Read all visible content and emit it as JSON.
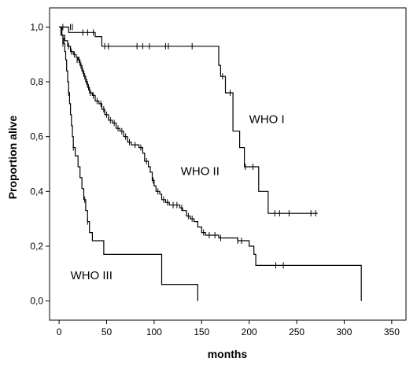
{
  "chart_data": {
    "type": "line",
    "subtype": "kaplan-meier-survival",
    "xlabel": "months",
    "ylabel": "Proportion alive",
    "xlim": [
      -10,
      365
    ],
    "ylim": [
      -0.07,
      1.07
    ],
    "x_ticks": [
      0,
      50,
      100,
      150,
      200,
      250,
      300,
      350
    ],
    "x_tick_labels": [
      "0",
      "50",
      "100",
      "150",
      "200",
      "250",
      "300",
      "350"
    ],
    "y_ticks": [
      0,
      0.2,
      0.4,
      0.6,
      0.8,
      1.0
    ],
    "y_tick_labels": [
      "0,0",
      "0,2",
      "0,4",
      "0,6",
      "0,8",
      "1,0"
    ],
    "grid": false,
    "legend": "none",
    "series": [
      {
        "name": "WHO I",
        "label_at": [
          200,
          0.65
        ],
        "steps": [
          [
            0,
            1.0
          ],
          [
            10,
            0.98
          ],
          [
            38,
            0.965
          ],
          [
            45,
            0.93
          ],
          [
            143,
            0.93
          ],
          [
            168,
            0.86
          ],
          [
            170,
            0.82
          ],
          [
            175,
            0.76
          ],
          [
            183,
            0.62
          ],
          [
            190,
            0.56
          ],
          [
            195,
            0.49
          ],
          [
            210,
            0.4
          ],
          [
            220,
            0.32
          ],
          [
            272,
            0.32
          ]
        ],
        "censored": [
          [
            4,
            1.0
          ],
          [
            12,
            1.0
          ],
          [
            14,
            1.0
          ],
          [
            25,
            0.98
          ],
          [
            30,
            0.98
          ],
          [
            36,
            0.98
          ],
          [
            48,
            0.93
          ],
          [
            52,
            0.93
          ],
          [
            82,
            0.93
          ],
          [
            88,
            0.93
          ],
          [
            95,
            0.93
          ],
          [
            112,
            0.93
          ],
          [
            115,
            0.93
          ],
          [
            140,
            0.93
          ],
          [
            172,
            0.82
          ],
          [
            180,
            0.76
          ],
          [
            196,
            0.49
          ],
          [
            204,
            0.49
          ],
          [
            227,
            0.32
          ],
          [
            232,
            0.32
          ],
          [
            242,
            0.32
          ],
          [
            265,
            0.32
          ],
          [
            270,
            0.32
          ]
        ]
      },
      {
        "name": "WHO II",
        "label_at": [
          128,
          0.46
        ],
        "steps": [
          [
            0,
            1.0
          ],
          [
            3,
            0.97
          ],
          [
            6,
            0.95
          ],
          [
            9,
            0.93
          ],
          [
            12,
            0.91
          ],
          [
            15,
            0.9
          ],
          [
            18,
            0.89
          ],
          [
            20,
            0.88
          ],
          [
            22,
            0.86
          ],
          [
            24,
            0.84
          ],
          [
            26,
            0.82
          ],
          [
            28,
            0.8
          ],
          [
            30,
            0.78
          ],
          [
            32,
            0.76
          ],
          [
            35,
            0.75
          ],
          [
            38,
            0.73
          ],
          [
            42,
            0.72
          ],
          [
            45,
            0.7
          ],
          [
            48,
            0.68
          ],
          [
            52,
            0.66
          ],
          [
            56,
            0.65
          ],
          [
            60,
            0.63
          ],
          [
            64,
            0.62
          ],
          [
            68,
            0.6
          ],
          [
            72,
            0.58
          ],
          [
            76,
            0.57
          ],
          [
            84,
            0.56
          ],
          [
            88,
            0.54
          ],
          [
            90,
            0.51
          ],
          [
            94,
            0.49
          ],
          [
            96,
            0.47
          ],
          [
            98,
            0.44
          ],
          [
            100,
            0.42
          ],
          [
            102,
            0.4
          ],
          [
            106,
            0.39
          ],
          [
            108,
            0.37
          ],
          [
            112,
            0.36
          ],
          [
            116,
            0.35
          ],
          [
            127,
            0.34
          ],
          [
            130,
            0.33
          ],
          [
            134,
            0.31
          ],
          [
            138,
            0.3
          ],
          [
            142,
            0.29
          ],
          [
            146,
            0.27
          ],
          [
            150,
            0.25
          ],
          [
            154,
            0.24
          ],
          [
            168,
            0.23
          ],
          [
            188,
            0.22
          ],
          [
            200,
            0.2
          ],
          [
            205,
            0.17
          ],
          [
            207,
            0.13
          ],
          [
            318,
            0.13
          ],
          [
            318,
            0.0
          ]
        ],
        "censored": [
          [
            5,
            0.95
          ],
          [
            10,
            0.93
          ],
          [
            13,
            0.91
          ],
          [
            16,
            0.9
          ],
          [
            19,
            0.88
          ],
          [
            21,
            0.88
          ],
          [
            23,
            0.86
          ],
          [
            25,
            0.84
          ],
          [
            27,
            0.82
          ],
          [
            29,
            0.8
          ],
          [
            31,
            0.78
          ],
          [
            33,
            0.76
          ],
          [
            36,
            0.75
          ],
          [
            40,
            0.73
          ],
          [
            44,
            0.72
          ],
          [
            47,
            0.7
          ],
          [
            50,
            0.68
          ],
          [
            54,
            0.66
          ],
          [
            58,
            0.65
          ],
          [
            62,
            0.63
          ],
          [
            66,
            0.62
          ],
          [
            70,
            0.6
          ],
          [
            74,
            0.58
          ],
          [
            80,
            0.57
          ],
          [
            86,
            0.56
          ],
          [
            92,
            0.51
          ],
          [
            99,
            0.44
          ],
          [
            104,
            0.4
          ],
          [
            110,
            0.37
          ],
          [
            114,
            0.36
          ],
          [
            120,
            0.35
          ],
          [
            124,
            0.35
          ],
          [
            129,
            0.34
          ],
          [
            136,
            0.31
          ],
          [
            140,
            0.3
          ],
          [
            152,
            0.25
          ],
          [
            158,
            0.24
          ],
          [
            164,
            0.24
          ],
          [
            170,
            0.23
          ],
          [
            188,
            0.22
          ],
          [
            192,
            0.22
          ],
          [
            228,
            0.13
          ],
          [
            236,
            0.13
          ]
        ]
      },
      {
        "name": "WHO III",
        "label_at": [
          12,
          0.08
        ],
        "steps": [
          [
            0,
            1.0
          ],
          [
            2,
            0.97
          ],
          [
            4,
            0.94
          ],
          [
            6,
            0.91
          ],
          [
            7,
            0.88
          ],
          [
            8,
            0.84
          ],
          [
            9,
            0.8
          ],
          [
            10,
            0.76
          ],
          [
            11,
            0.72
          ],
          [
            12,
            0.68
          ],
          [
            13,
            0.64
          ],
          [
            14,
            0.6
          ],
          [
            15,
            0.56
          ],
          [
            17,
            0.53
          ],
          [
            20,
            0.49
          ],
          [
            22,
            0.45
          ],
          [
            24,
            0.41
          ],
          [
            26,
            0.37
          ],
          [
            28,
            0.33
          ],
          [
            30,
            0.29
          ],
          [
            32,
            0.25
          ],
          [
            35,
            0.22
          ],
          [
            47,
            0.17
          ],
          [
            107,
            0.17
          ],
          [
            108,
            0.06
          ],
          [
            146,
            0.06
          ],
          [
            146,
            0.0
          ]
        ],
        "censored": [
          [
            4,
            0.94
          ],
          [
            10,
            0.76
          ],
          [
            15,
            0.56
          ],
          [
            27,
            0.37
          ],
          [
            30,
            0.29
          ]
        ]
      }
    ]
  }
}
